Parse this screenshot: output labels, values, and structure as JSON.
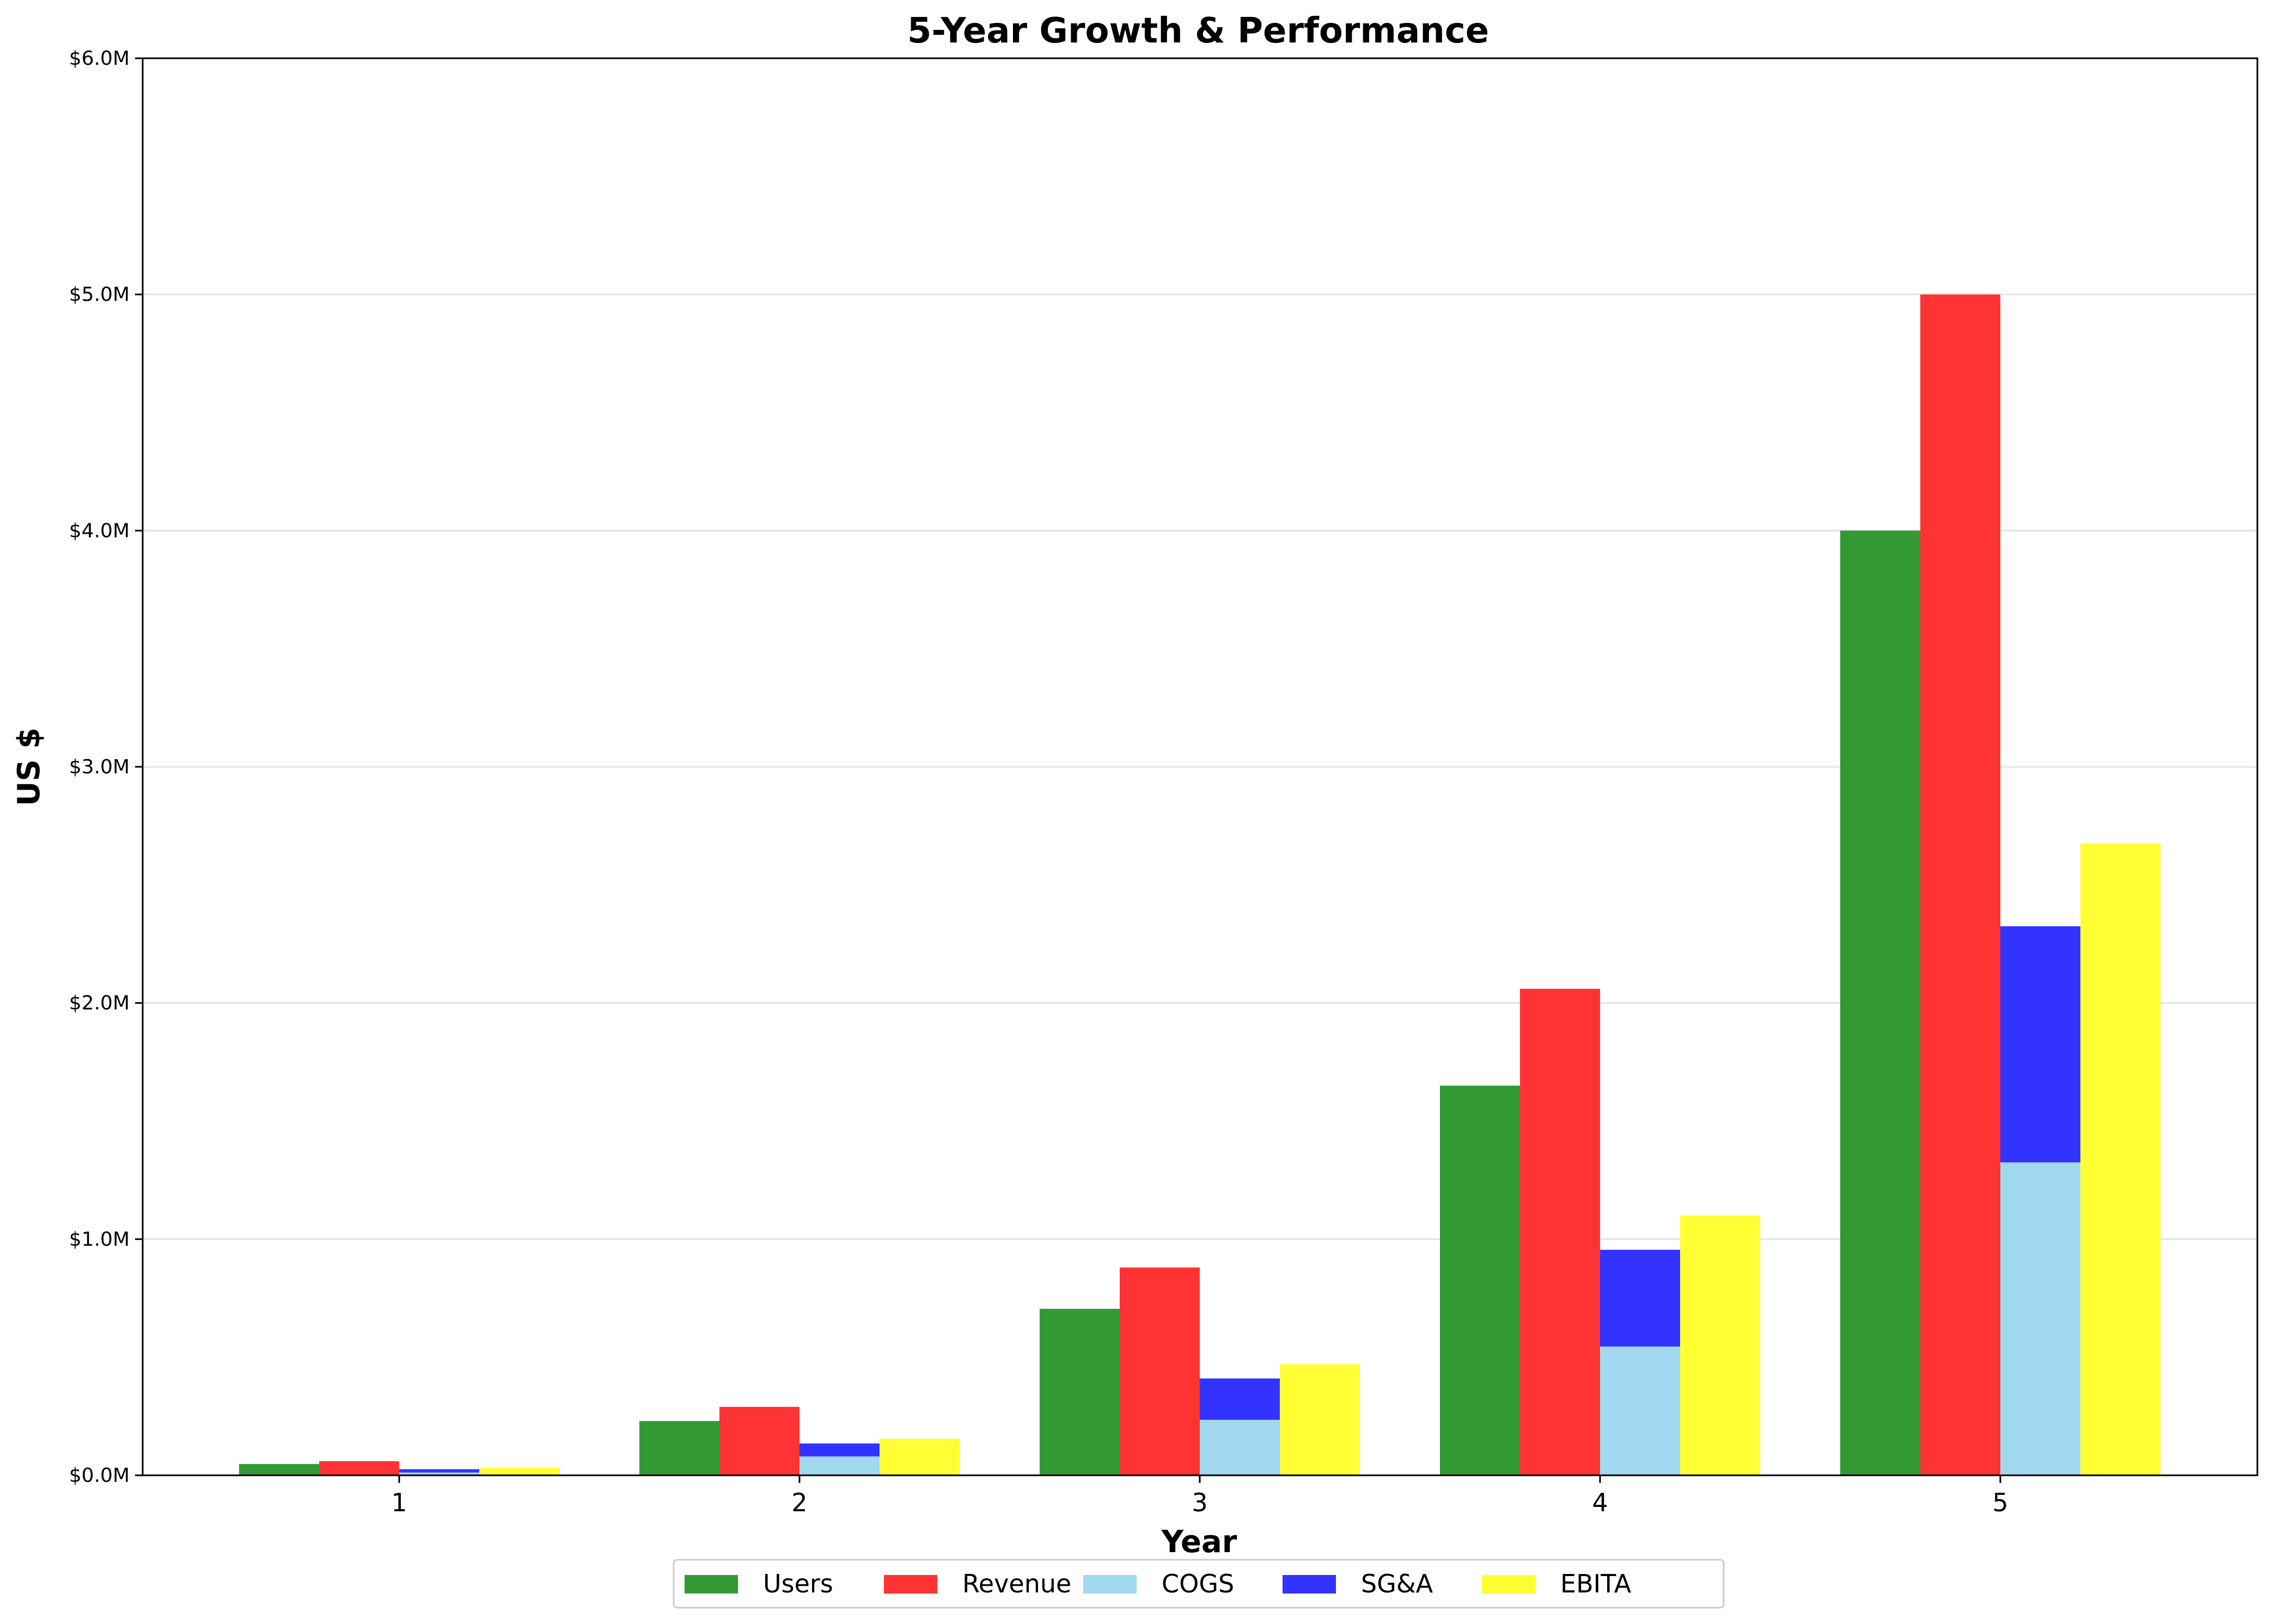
{
  "chart_data": {
    "type": "bar",
    "title": "5-Year Growth & Performance",
    "xlabel": "Year",
    "ylabel": "US $",
    "categories": [
      "1",
      "2",
      "3",
      "4",
      "5"
    ],
    "ylim": [
      0,
      6000000
    ],
    "yticks": [
      0,
      1000000,
      2000000,
      3000000,
      4000000,
      5000000,
      6000000
    ],
    "ytick_labels": [
      "$0.0M",
      "$1.0M",
      "$2.0M",
      "$3.0M",
      "$4.0M",
      "$5.0M",
      "$6.0M"
    ],
    "grid": "horizontal",
    "legend_position": "bottom-center",
    "series": [
      {
        "name": "Users",
        "color": "#339933",
        "values": [
          48000,
          230000,
          705000,
          1650000,
          4000000
        ]
      },
      {
        "name": "Revenue",
        "color": "#ff3333",
        "values": [
          60000,
          290000,
          880000,
          2060000,
          5000000
        ]
      },
      {
        "name": "COGS",
        "color": "#a0d8ef",
        "values": [
          12000,
          80000,
          235000,
          545000,
          1325000
        ],
        "stack_group": "costs"
      },
      {
        "name": "SG&A",
        "color": "#3333ff",
        "values": [
          14000,
          55000,
          175000,
          410000,
          1000000
        ],
        "stack_group": "costs"
      },
      {
        "name": "EBITA",
        "color": "#ffff33",
        "values": [
          32000,
          155000,
          470000,
          1100000,
          2675000
        ]
      }
    ]
  }
}
